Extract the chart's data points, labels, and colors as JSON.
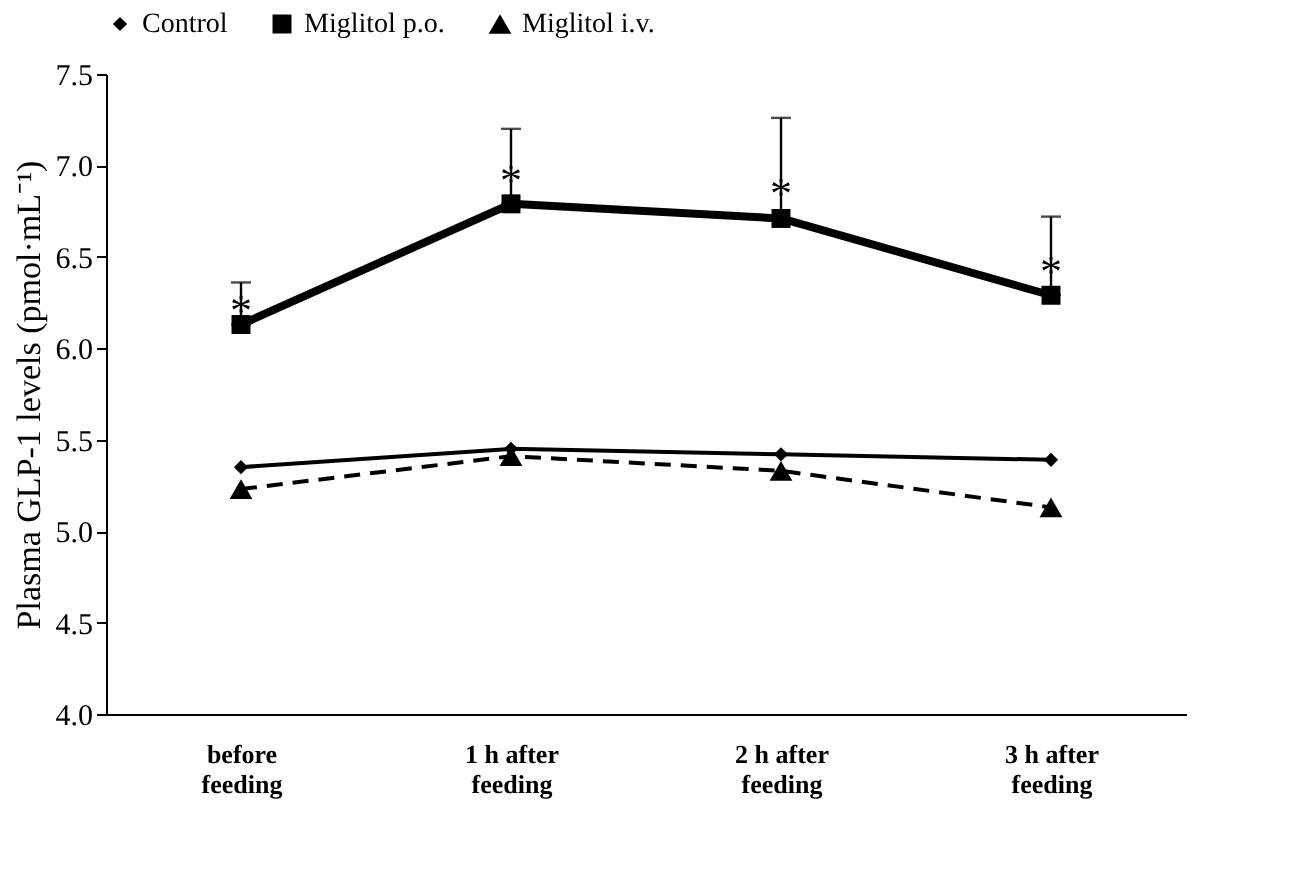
{
  "chart_data": {
    "type": "line",
    "ylabel": "Plasma GLP-1 levels (pmol·mL⁻¹)",
    "categories": [
      "before feeding",
      "1 h after feeding",
      "2 h after feeding",
      "3 h after feeding"
    ],
    "ylim": [
      4,
      7.5
    ],
    "yticks": [
      {
        "value": 4,
        "label": "4.0"
      },
      4.5,
      {
        "value": 5,
        "label": "5.0"
      },
      5.5,
      {
        "value": 6,
        "label": "6.0"
      },
      6.5,
      {
        "value": 7,
        "label": "7.0"
      },
      7.5
    ],
    "grid": false,
    "legend": "top",
    "series": [
      {
        "name": "Control",
        "color": "#000000",
        "marker": "diamond",
        "line_style": "solid",
        "values": [
          5.35,
          5.45,
          5.42,
          5.39
        ]
      },
      {
        "name": "Miglitol p.o.",
        "color": "#000000",
        "marker": "square",
        "line_style": "solid",
        "values": [
          6.13,
          6.79,
          6.71,
          6.29
        ],
        "errors": [
          [
            6.13,
            6.36
          ],
          [
            6.79,
            7.2
          ],
          [
            6.71,
            7.26
          ],
          [
            6.29,
            6.72
          ]
        ]
      },
      {
        "name": "Miglitol i.v.",
        "color": "#000000",
        "marker": "triangle",
        "line_style": "dashed",
        "values": [
          5.23,
          5.41,
          5.33,
          5.13
        ]
      }
    ],
    "annotations": [
      {
        "text": "*",
        "x": "before feeding",
        "y": 6.25
      },
      {
        "text": "*",
        "x": "1 h after feeding",
        "y": 6.96
      },
      {
        "text": "*",
        "x": "2 h after feeding",
        "y": 6.89
      },
      {
        "text": "*",
        "x": "3 h after feeding",
        "y": 6.46
      }
    ]
  }
}
